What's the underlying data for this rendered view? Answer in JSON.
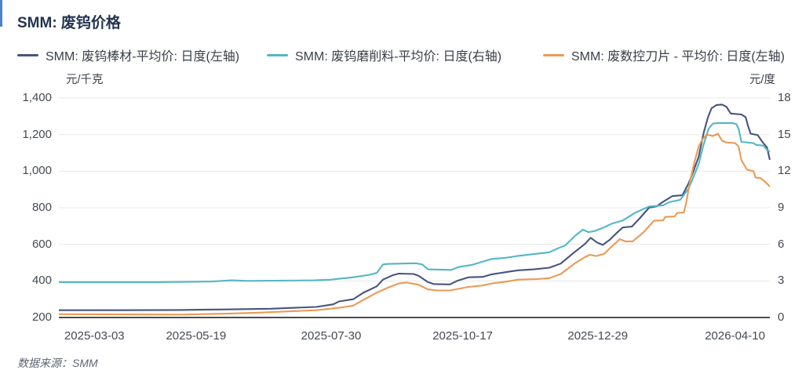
{
  "header": {
    "title": "SMM: 废钨价格"
  },
  "footer": {
    "source_label": "数据来源：SMM"
  },
  "axes": {
    "left_unit": "元/千克",
    "right_unit": "元/度",
    "left_ticks": [
      "1,400",
      "1,200",
      "1,000",
      "800",
      "600",
      "400",
      "200"
    ],
    "right_ticks": [
      "18",
      "15",
      "12",
      "9",
      "6",
      "3",
      "0"
    ]
  },
  "chart_data": {
    "type": "line",
    "title": "SMM: 废钨价格",
    "grid": true,
    "legend_position": "top",
    "left_axis": {
      "label": "元/千克",
      "range": [
        200,
        1400
      ],
      "tick_values": [
        1400,
        1200,
        1000,
        800,
        600,
        400,
        200
      ]
    },
    "right_axis": {
      "label": "元/度",
      "range": [
        0,
        18
      ],
      "tick_values": [
        18,
        15,
        12,
        9,
        6,
        3,
        0
      ]
    },
    "x_ticks": [
      {
        "label": "2025-03-03",
        "pos": 0.05
      },
      {
        "label": "2025-05-19",
        "pos": 0.193
      },
      {
        "label": "2025-07-30",
        "pos": 0.383
      },
      {
        "label": "2025-10-17",
        "pos": 0.568
      },
      {
        "label": "2025-12-29",
        "pos": 0.758
      },
      {
        "label": "2026-04-10",
        "pos": 0.951
      }
    ],
    "series": [
      {
        "name": "SMM: 废钨棒材-平均价: 日度(左轴)",
        "axis": "left",
        "color": "#47547e",
        "points": [
          [
            0,
            240
          ],
          [
            0.083,
            240
          ],
          [
            0.171,
            241
          ],
          [
            0.235,
            244
          ],
          [
            0.298,
            248
          ],
          [
            0.362,
            258
          ],
          [
            0.386,
            272
          ],
          [
            0.394,
            288
          ],
          [
            0.414,
            300
          ],
          [
            0.428,
            335
          ],
          [
            0.447,
            370
          ],
          [
            0.456,
            407
          ],
          [
            0.469,
            430
          ],
          [
            0.478,
            440
          ],
          [
            0.499,
            438
          ],
          [
            0.506,
            428
          ],
          [
            0.519,
            394
          ],
          [
            0.527,
            383
          ],
          [
            0.55,
            381
          ],
          [
            0.56,
            400
          ],
          [
            0.576,
            420
          ],
          [
            0.596,
            422
          ],
          [
            0.609,
            436
          ],
          [
            0.629,
            448
          ],
          [
            0.646,
            458
          ],
          [
            0.668,
            463
          ],
          [
            0.69,
            472
          ],
          [
            0.706,
            495
          ],
          [
            0.723,
            550
          ],
          [
            0.74,
            602
          ],
          [
            0.748,
            636
          ],
          [
            0.757,
            610
          ],
          [
            0.765,
            597
          ],
          [
            0.775,
            625
          ],
          [
            0.784,
            660
          ],
          [
            0.793,
            692
          ],
          [
            0.806,
            697
          ],
          [
            0.817,
            742
          ],
          [
            0.83,
            800
          ],
          [
            0.841,
            808
          ],
          [
            0.848,
            828
          ],
          [
            0.858,
            852
          ],
          [
            0.863,
            864
          ],
          [
            0.877,
            868
          ],
          [
            0.886,
            936
          ],
          [
            0.892,
            995
          ],
          [
            0.9,
            1080
          ],
          [
            0.907,
            1210
          ],
          [
            0.913,
            1295
          ],
          [
            0.918,
            1344
          ],
          [
            0.925,
            1362
          ],
          [
            0.933,
            1364
          ],
          [
            0.939,
            1352
          ],
          [
            0.945,
            1315
          ],
          [
            0.96,
            1310
          ],
          [
            0.966,
            1295
          ],
          [
            0.969,
            1252
          ],
          [
            0.973,
            1205
          ],
          [
            0.983,
            1197
          ],
          [
            0.99,
            1158
          ],
          [
            0.996,
            1130
          ],
          [
            1,
            1062
          ]
        ]
      },
      {
        "name": "SMM: 废钨磨削料-平均价: 日度(右轴)",
        "axis": "right",
        "color": "#54b6c5",
        "points": [
          [
            0,
            2.9
          ],
          [
            0.138,
            2.9
          ],
          [
            0.215,
            2.95
          ],
          [
            0.243,
            3.05
          ],
          [
            0.265,
            3.0
          ],
          [
            0.359,
            3.05
          ],
          [
            0.381,
            3.1
          ],
          [
            0.414,
            3.3
          ],
          [
            0.436,
            3.5
          ],
          [
            0.447,
            3.65
          ],
          [
            0.456,
            4.35
          ],
          [
            0.464,
            4.4
          ],
          [
            0.502,
            4.45
          ],
          [
            0.511,
            4.35
          ],
          [
            0.519,
            3.95
          ],
          [
            0.552,
            3.9
          ],
          [
            0.563,
            4.15
          ],
          [
            0.58,
            4.3
          ],
          [
            0.609,
            4.8
          ],
          [
            0.629,
            4.9
          ],
          [
            0.646,
            5.05
          ],
          [
            0.668,
            5.2
          ],
          [
            0.69,
            5.35
          ],
          [
            0.703,
            5.7
          ],
          [
            0.712,
            5.9
          ],
          [
            0.726,
            6.7
          ],
          [
            0.737,
            7.2
          ],
          [
            0.745,
            7.0
          ],
          [
            0.754,
            7.1
          ],
          [
            0.765,
            7.35
          ],
          [
            0.778,
            7.7
          ],
          [
            0.793,
            7.95
          ],
          [
            0.811,
            8.6
          ],
          [
            0.83,
            9.1
          ],
          [
            0.85,
            9.2
          ],
          [
            0.858,
            9.45
          ],
          [
            0.874,
            9.65
          ],
          [
            0.886,
            10.6
          ],
          [
            0.893,
            11.6
          ],
          [
            0.9,
            12.6
          ],
          [
            0.906,
            14.0
          ],
          [
            0.914,
            15.5
          ],
          [
            0.92,
            15.9
          ],
          [
            0.927,
            15.95
          ],
          [
            0.947,
            15.95
          ],
          [
            0.953,
            15.85
          ],
          [
            0.956,
            15.5
          ],
          [
            0.96,
            14.4
          ],
          [
            0.977,
            14.3
          ],
          [
            0.981,
            14.15
          ],
          [
            0.991,
            14.1
          ],
          [
            0.996,
            13.75
          ],
          [
            1,
            13.6
          ]
        ]
      },
      {
        "name": "SMM: 废数控刀片 - 平均价: 日度(左轴)",
        "axis": "left",
        "color": "#ea9a55",
        "points": [
          [
            0,
            218
          ],
          [
            0.171,
            216
          ],
          [
            0.237,
            221
          ],
          [
            0.278,
            226
          ],
          [
            0.362,
            240
          ],
          [
            0.4,
            256
          ],
          [
            0.414,
            265
          ],
          [
            0.43,
            300
          ],
          [
            0.447,
            336
          ],
          [
            0.464,
            365
          ],
          [
            0.478,
            386
          ],
          [
            0.489,
            391
          ],
          [
            0.506,
            379
          ],
          [
            0.519,
            354
          ],
          [
            0.532,
            348
          ],
          [
            0.55,
            348
          ],
          [
            0.576,
            367
          ],
          [
            0.596,
            375
          ],
          [
            0.609,
            386
          ],
          [
            0.629,
            396
          ],
          [
            0.646,
            407
          ],
          [
            0.673,
            410
          ],
          [
            0.69,
            415
          ],
          [
            0.706,
            438
          ],
          [
            0.726,
            497
          ],
          [
            0.74,
            530
          ],
          [
            0.747,
            543
          ],
          [
            0.756,
            536
          ],
          [
            0.767,
            548
          ],
          [
            0.778,
            590
          ],
          [
            0.789,
            628
          ],
          [
            0.797,
            616
          ],
          [
            0.807,
            616
          ],
          [
            0.822,
            664
          ],
          [
            0.837,
            729
          ],
          [
            0.85,
            731
          ],
          [
            0.853,
            750
          ],
          [
            0.866,
            752
          ],
          [
            0.87,
            772
          ],
          [
            0.879,
            774
          ],
          [
            0.882,
            820
          ],
          [
            0.888,
            950
          ],
          [
            0.894,
            1050
          ],
          [
            0.9,
            1136
          ],
          [
            0.905,
            1172
          ],
          [
            0.911,
            1200
          ],
          [
            0.92,
            1192
          ],
          [
            0.927,
            1205
          ],
          [
            0.933,
            1165
          ],
          [
            0.94,
            1156
          ],
          [
            0.951,
            1154
          ],
          [
            0.956,
            1136
          ],
          [
            0.96,
            1060
          ],
          [
            0.968,
            1008
          ],
          [
            0.977,
            1000
          ],
          [
            0.98,
            965
          ],
          [
            0.987,
            962
          ],
          [
            0.996,
            932
          ],
          [
            1,
            915
          ]
        ]
      }
    ]
  }
}
